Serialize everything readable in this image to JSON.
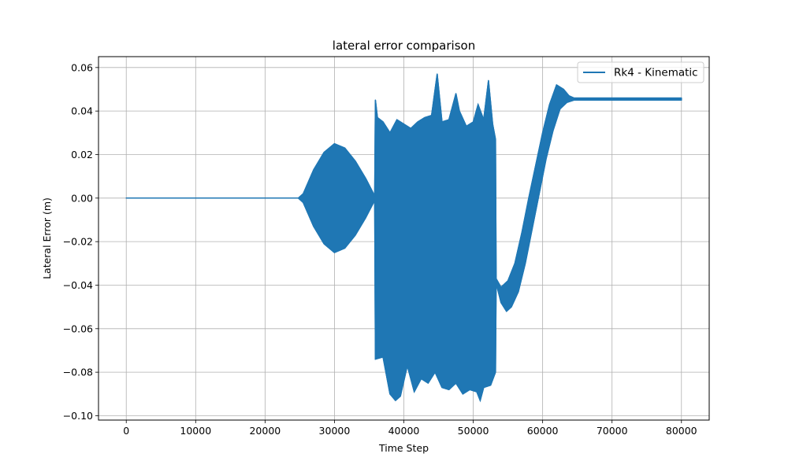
{
  "chart_data": {
    "type": "line",
    "title": "lateral error comparison",
    "xlabel": "Time Step",
    "ylabel": "Lateral Error (m)",
    "xlim": [
      -4000,
      84000
    ],
    "ylim": [
      -0.102,
      0.065
    ],
    "xticks": [
      0,
      10000,
      20000,
      30000,
      40000,
      50000,
      60000,
      70000,
      80000
    ],
    "xtick_labels": [
      "0",
      "10000",
      "20000",
      "30000",
      "40000",
      "50000",
      "60000",
      "70000",
      "80000"
    ],
    "yticks": [
      -0.1,
      -0.08,
      -0.06,
      -0.04,
      -0.02,
      0.0,
      0.02,
      0.04,
      0.06
    ],
    "ytick_labels": [
      "−0.10",
      "−0.08",
      "−0.06",
      "−0.04",
      "−0.02",
      "0.00",
      "0.02",
      "0.04",
      "0.06"
    ],
    "grid": true,
    "legend_position": "top-right",
    "series": [
      {
        "name": "Rk4 - Kinematic",
        "color": "#1f77b4",
        "envelope_upper": [
          [
            0,
            0.0
          ],
          [
            24800,
            0.0
          ],
          [
            25500,
            0.002
          ],
          [
            27000,
            0.013
          ],
          [
            28500,
            0.021
          ],
          [
            30000,
            0.025
          ],
          [
            31500,
            0.023
          ],
          [
            33000,
            0.017
          ],
          [
            34500,
            0.009
          ],
          [
            35800,
            0.001
          ],
          [
            35900,
            0.045
          ],
          [
            36200,
            0.037
          ],
          [
            37000,
            0.035
          ],
          [
            38000,
            0.03
          ],
          [
            39000,
            0.036
          ],
          [
            40000,
            0.034
          ],
          [
            41000,
            0.032
          ],
          [
            42000,
            0.035
          ],
          [
            43000,
            0.037
          ],
          [
            44000,
            0.038
          ],
          [
            44800,
            0.057
          ],
          [
            45500,
            0.035
          ],
          [
            46500,
            0.036
          ],
          [
            47500,
            0.048
          ],
          [
            48000,
            0.04
          ],
          [
            49000,
            0.033
          ],
          [
            50000,
            0.035
          ],
          [
            50700,
            0.043
          ],
          [
            51500,
            0.036
          ],
          [
            52200,
            0.054
          ],
          [
            52800,
            0.034
          ],
          [
            53200,
            0.027
          ],
          [
            53300,
            -0.037
          ],
          [
            54000,
            -0.041
          ],
          [
            55000,
            -0.038
          ],
          [
            56000,
            -0.03
          ],
          [
            57000,
            -0.016
          ],
          [
            58000,
            0.0
          ],
          [
            59000,
            0.015
          ],
          [
            60000,
            0.03
          ],
          [
            61000,
            0.043
          ],
          [
            62000,
            0.052
          ],
          [
            63000,
            0.05
          ],
          [
            63800,
            0.047
          ],
          [
            64500,
            0.046
          ],
          [
            80000,
            0.046
          ]
        ],
        "envelope_lower": [
          [
            0,
            0.0
          ],
          [
            24800,
            0.0
          ],
          [
            25500,
            -0.002
          ],
          [
            27000,
            -0.013
          ],
          [
            28500,
            -0.021
          ],
          [
            30000,
            -0.025
          ],
          [
            31500,
            -0.023
          ],
          [
            33000,
            -0.017
          ],
          [
            34500,
            -0.009
          ],
          [
            35800,
            -0.001
          ],
          [
            35900,
            -0.074
          ],
          [
            37000,
            -0.073
          ],
          [
            38000,
            -0.09
          ],
          [
            38800,
            -0.093
          ],
          [
            39500,
            -0.091
          ],
          [
            40500,
            -0.077
          ],
          [
            41500,
            -0.089
          ],
          [
            42500,
            -0.083
          ],
          [
            43500,
            -0.085
          ],
          [
            44500,
            -0.08
          ],
          [
            45500,
            -0.087
          ],
          [
            46500,
            -0.088
          ],
          [
            47500,
            -0.085
          ],
          [
            48500,
            -0.09
          ],
          [
            49500,
            -0.088
          ],
          [
            50500,
            -0.089
          ],
          [
            51000,
            -0.093
          ],
          [
            51500,
            -0.087
          ],
          [
            52500,
            -0.086
          ],
          [
            53200,
            -0.08
          ],
          [
            53300,
            -0.039
          ],
          [
            54000,
            -0.048
          ],
          [
            54800,
            -0.052
          ],
          [
            55500,
            -0.05
          ],
          [
            56500,
            -0.043
          ],
          [
            57500,
            -0.03
          ],
          [
            58500,
            -0.014
          ],
          [
            59500,
            0.002
          ],
          [
            60500,
            0.018
          ],
          [
            61500,
            0.031
          ],
          [
            62500,
            0.041
          ],
          [
            63500,
            0.044
          ],
          [
            64500,
            0.045
          ],
          [
            80000,
            0.045
          ]
        ]
      }
    ]
  }
}
